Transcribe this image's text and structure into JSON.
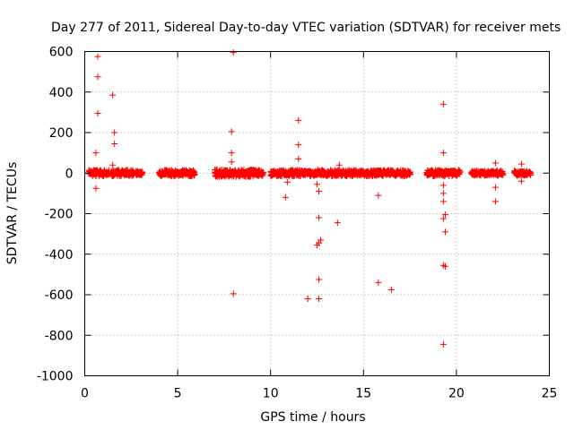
{
  "chart_data": {
    "type": "scatter",
    "title": "Day 277 of 2011, Sidereal Day-to-day VTEC variation (SDTVAR) for receiver mets",
    "xlabel": "GPS time / hours",
    "ylabel": "SDTVAR / TECUs",
    "xlim": [
      0,
      25
    ],
    "ylim": [
      -1000,
      600
    ],
    "xticks": [
      "0",
      "5",
      "10",
      "15",
      "20",
      "25"
    ],
    "yticks": [
      "600",
      "400",
      "200",
      "0",
      "-200",
      "-400",
      "-600",
      "-800",
      "-1000"
    ],
    "grid": true,
    "marker": "+",
    "color": "#ff0000",
    "dense_bands": [
      {
        "x_start": 0.2,
        "x_end": 1.3,
        "y_amp": 15
      },
      {
        "x_start": 1.4,
        "x_end": 2.6,
        "y_amp": 15
      },
      {
        "x_start": 2.75,
        "x_end": 3.1,
        "y_amp": 10
      },
      {
        "x_start": 4.0,
        "x_end": 5.9,
        "y_amp": 15
      },
      {
        "x_start": 7.0,
        "x_end": 9.6,
        "y_amp": 18
      },
      {
        "x_start": 10.0,
        "x_end": 17.5,
        "y_amp": 15
      },
      {
        "x_start": 18.4,
        "x_end": 20.2,
        "y_amp": 15
      },
      {
        "x_start": 20.8,
        "x_end": 22.5,
        "y_amp": 12
      },
      {
        "x_start": 23.1,
        "x_end": 24.0,
        "y_amp": 12
      }
    ],
    "points": [
      {
        "x": 0.7,
        "y": 575
      },
      {
        "x": 0.7,
        "y": 475
      },
      {
        "x": 0.7,
        "y": 295
      },
      {
        "x": 0.6,
        "y": 100
      },
      {
        "x": 0.6,
        "y": -75
      },
      {
        "x": 1.5,
        "y": 385
      },
      {
        "x": 1.6,
        "y": 200
      },
      {
        "x": 1.6,
        "y": 145
      },
      {
        "x": 1.5,
        "y": 40
      },
      {
        "x": 8.0,
        "y": 595
      },
      {
        "x": 7.9,
        "y": 205
      },
      {
        "x": 7.9,
        "y": 100
      },
      {
        "x": 7.9,
        "y": 55
      },
      {
        "x": 8.0,
        "y": -595
      },
      {
        "x": 11.5,
        "y": 260
      },
      {
        "x": 11.5,
        "y": 140
      },
      {
        "x": 11.5,
        "y": 70
      },
      {
        "x": 10.8,
        "y": -120
      },
      {
        "x": 10.9,
        "y": -45
      },
      {
        "x": 12.0,
        "y": -620
      },
      {
        "x": 12.6,
        "y": -620
      },
      {
        "x": 12.6,
        "y": -525
      },
      {
        "x": 12.5,
        "y": -355
      },
      {
        "x": 12.6,
        "y": -345
      },
      {
        "x": 12.7,
        "y": -330
      },
      {
        "x": 12.6,
        "y": -220
      },
      {
        "x": 12.6,
        "y": -90
      },
      {
        "x": 12.5,
        "y": -55
      },
      {
        "x": 13.6,
        "y": -245
      },
      {
        "x": 13.7,
        "y": 40
      },
      {
        "x": 15.8,
        "y": -540
      },
      {
        "x": 15.8,
        "y": -110
      },
      {
        "x": 16.5,
        "y": -575
      },
      {
        "x": 19.3,
        "y": 340
      },
      {
        "x": 19.3,
        "y": 100
      },
      {
        "x": 19.3,
        "y": -60
      },
      {
        "x": 19.3,
        "y": -100
      },
      {
        "x": 19.3,
        "y": -140
      },
      {
        "x": 19.4,
        "y": -205
      },
      {
        "x": 19.3,
        "y": -225
      },
      {
        "x": 19.4,
        "y": -290
      },
      {
        "x": 19.3,
        "y": -455
      },
      {
        "x": 19.4,
        "y": -460
      },
      {
        "x": 19.3,
        "y": -845
      },
      {
        "x": 22.1,
        "y": 50
      },
      {
        "x": 22.1,
        "y": -70
      },
      {
        "x": 22.1,
        "y": -140
      },
      {
        "x": 23.5,
        "y": 45
      },
      {
        "x": 23.5,
        "y": -40
      }
    ]
  }
}
